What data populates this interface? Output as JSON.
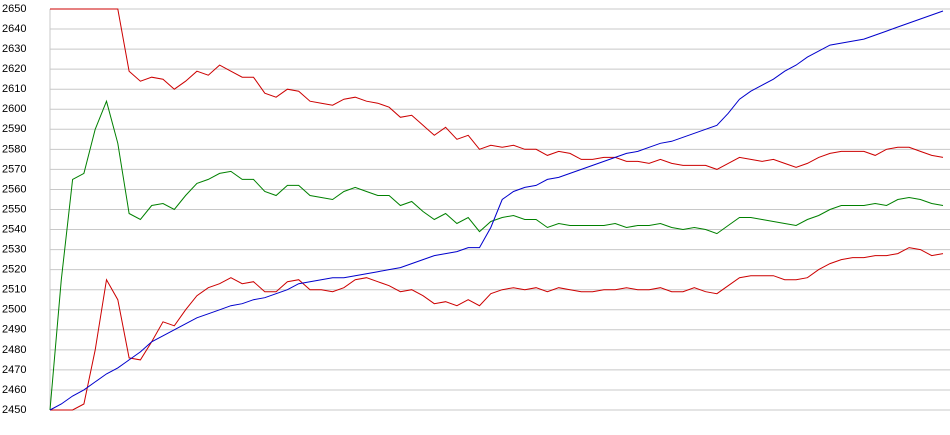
{
  "chart_data": {
    "type": "line",
    "categories": [
      null,
      null,
      null,
      null,
      null,
      null,
      null,
      null,
      null,
      null,
      null,
      null,
      null,
      null,
      null,
      null,
      null,
      null,
      null,
      null,
      null,
      null,
      null,
      null,
      null,
      null,
      null,
      null,
      null,
      null,
      null,
      null,
      null,
      null,
      null,
      null,
      null,
      null,
      null,
      null,
      null,
      null,
      null,
      null,
      null,
      null,
      null,
      null,
      null,
      null,
      null,
      null,
      null,
      null,
      null,
      null,
      null,
      null,
      null,
      null,
      null,
      null,
      null,
      null,
      null,
      null,
      null,
      null,
      null,
      null,
      null,
      null,
      null,
      null,
      null,
      null,
      null,
      null,
      null,
      null
    ],
    "series": [
      {
        "color": "#cc0000",
        "values": [
          2650,
          2650,
          2650,
          2650,
          2650,
          2650,
          2650,
          2619,
          2614,
          2616,
          2615,
          2610,
          2614,
          2619,
          2617,
          2622,
          2619,
          2616,
          2616,
          2608,
          2606,
          2610,
          2609,
          2604,
          2603,
          2602,
          2605,
          2606,
          2604,
          2603,
          2601,
          2596,
          2597,
          2592,
          2587,
          2591,
          2585,
          2587,
          2580,
          2582,
          2581,
          2582,
          2580,
          2580,
          2577,
          2579,
          2578,
          2575,
          2575,
          2576,
          2576,
          2574,
          2574,
          2573,
          2575,
          2573,
          2572,
          2572,
          2572,
          2570,
          2573,
          2576,
          2575,
          2574,
          2575,
          2573,
          2571,
          2573,
          2576,
          2578,
          2579,
          2579,
          2579,
          2577,
          2580,
          2581,
          2581,
          2579,
          2577,
          2576
        ]
      },
      {
        "color": "#008000",
        "values": [
          2450,
          2515,
          2565,
          2568,
          2590,
          2604,
          2583,
          2548,
          2545,
          2552,
          2553,
          2550,
          2557,
          2563,
          2565,
          2568,
          2569,
          2565,
          2565,
          2559,
          2557,
          2562,
          2562,
          2557,
          2556,
          2555,
          2559,
          2561,
          2559,
          2557,
          2557,
          2552,
          2554,
          2549,
          2545,
          2548,
          2543,
          2546,
          2539,
          2544,
          2546,
          2547,
          2545,
          2545,
          2541,
          2543,
          2542,
          2542,
          2542,
          2542,
          2543,
          2541,
          2542,
          2542,
          2543,
          2541,
          2540,
          2541,
          2540,
          2538,
          2542,
          2546,
          2546,
          2545,
          2544,
          2543,
          2542,
          2545,
          2547,
          2550,
          2552,
          2552,
          2552,
          2553,
          2552,
          2555,
          2556,
          2555,
          2553,
          2552
        ]
      },
      {
        "color": "#cc0000",
        "values": [
          2450,
          2450,
          2450,
          2453,
          2480,
          2515,
          2505,
          2476,
          2475,
          2484,
          2494,
          2492,
          2500,
          2507,
          2511,
          2513,
          2516,
          2513,
          2514,
          2509,
          2509,
          2514,
          2515,
          2510,
          2510,
          2509,
          2511,
          2515,
          2516,
          2514,
          2512,
          2509,
          2510,
          2507,
          2503,
          2504,
          2502,
          2505,
          2502,
          2508,
          2510,
          2511,
          2510,
          2511,
          2509,
          2511,
          2510,
          2509,
          2509,
          2510,
          2510,
          2511,
          2510,
          2510,
          2511,
          2509,
          2509,
          2511,
          2509,
          2508,
          2512,
          2516,
          2517,
          2517,
          2517,
          2515,
          2515,
          2516,
          2520,
          2523,
          2525,
          2526,
          2526,
          2527,
          2527,
          2528,
          2531,
          2530,
          2527,
          2528
        ]
      },
      {
        "color": "#0000cc",
        "values": [
          2450,
          2453,
          2457,
          2460,
          2464,
          2468,
          2471,
          2475,
          2479,
          2484,
          2487,
          2490,
          2493,
          2496,
          2498,
          2500,
          2502,
          2503,
          2505,
          2506,
          2508,
          2510,
          2513,
          2514,
          2515,
          2516,
          2516,
          2517,
          2518,
          2519,
          2520,
          2521,
          2523,
          2525,
          2527,
          2528,
          2529,
          2531,
          2531,
          2541,
          2555,
          2559,
          2561,
          2562,
          2565,
          2566,
          2568,
          2570,
          2572,
          2574,
          2576,
          2578,
          2579,
          2581,
          2583,
          2584,
          2586,
          2588,
          2590,
          2592,
          2598,
          2605,
          2609,
          2612,
          2615,
          2619,
          2622,
          2626,
          2629,
          2632,
          2633,
          2634,
          2635,
          2637,
          2639,
          2641,
          2643,
          2645,
          2647,
          2649
        ]
      }
    ],
    "ylim": [
      2450,
      2650
    ],
    "yticks": [
      2450,
      2460,
      2470,
      2480,
      2490,
      2500,
      2510,
      2520,
      2530,
      2540,
      2550,
      2560,
      2570,
      2580,
      2590,
      2600,
      2610,
      2620,
      2630,
      2640,
      2650
    ],
    "grid": true
  }
}
